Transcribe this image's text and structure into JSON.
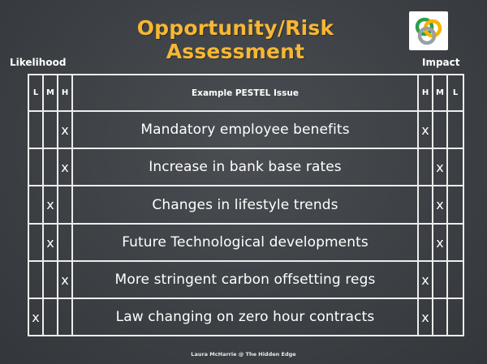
{
  "title": "Opportunity/Risk Assessment",
  "colors": {
    "title": "#f7b733",
    "background": "#3d4146",
    "grid": "#ededed",
    "text": "#ffffff"
  },
  "likelihood_label": "Likelihood",
  "impact_label": "Impact",
  "header": {
    "likelihood": [
      "L",
      "M",
      "H"
    ],
    "issue": "Example PESTEL Issue",
    "impact": [
      "H",
      "M",
      "L"
    ]
  },
  "rows": [
    {
      "issue": "Mandatory employee benefits",
      "likelihood": [
        "",
        "",
        "x"
      ],
      "impact": [
        "x",
        "",
        ""
      ]
    },
    {
      "issue": "Increase in bank base rates",
      "likelihood": [
        "",
        "",
        "x"
      ],
      "impact": [
        "",
        "x",
        ""
      ]
    },
    {
      "issue": "Changes in lifestyle trends",
      "likelihood": [
        "",
        "x",
        ""
      ],
      "impact": [
        "",
        "x",
        ""
      ]
    },
    {
      "issue": "Future Technological developments",
      "likelihood": [
        "",
        "x",
        ""
      ],
      "impact": [
        "",
        "x",
        ""
      ]
    },
    {
      "issue": "More stringent carbon offsetting regs",
      "likelihood": [
        "",
        "",
        "x"
      ],
      "impact": [
        "x",
        "",
        ""
      ]
    },
    {
      "issue": "Law changing on zero hour contracts",
      "likelihood": [
        "x",
        "",
        ""
      ],
      "impact": [
        "x",
        "",
        ""
      ]
    }
  ],
  "footer": "Laura McHarrie @ The Hidden Edge",
  "logo_icon": "interlocking-rings-icon"
}
